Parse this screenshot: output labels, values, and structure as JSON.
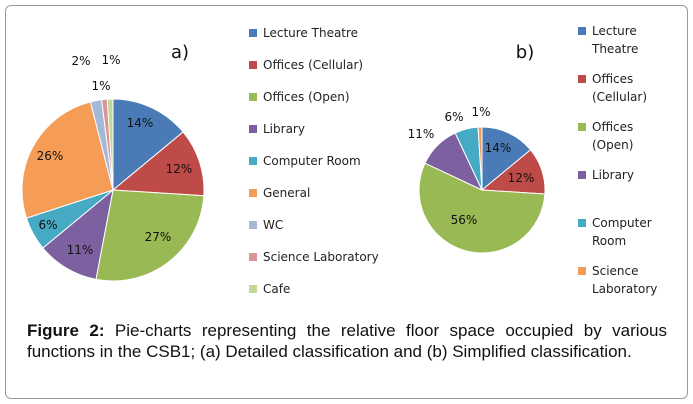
{
  "chart_data": [
    {
      "type": "pie",
      "panel_label": "a)",
      "slices": [
        {
          "label": "Lecture Theatre",
          "value": 14,
          "label_text": "14%",
          "color": "#4a7bb7"
        },
        {
          "label": "Offices (Cellular)",
          "value": 12,
          "label_text": "12%",
          "color": "#be4b48"
        },
        {
          "label": "Offices (Open)",
          "value": 27,
          "label_text": "27%",
          "color": "#98b954"
        },
        {
          "label": "Library",
          "value": 11,
          "label_text": "11%",
          "color": "#7d60a0"
        },
        {
          "label": "Computer Room",
          "value": 6,
          "label_text": "6%",
          "color": "#46aac5"
        },
        {
          "label": "General",
          "value": 26,
          "label_text": "26%",
          "color": "#f59d56"
        },
        {
          "label": "WC",
          "value": 2,
          "label_text": "2%",
          "color": "#a5b8d8"
        },
        {
          "label": "Science Laboratory",
          "value": 1,
          "label_text": "1%",
          "color": "#d99694"
        },
        {
          "label": "Cafe",
          "value": 1,
          "label_text": "1%",
          "color": "#c3d69b"
        }
      ],
      "legend": [
        {
          "lines": [
            "Lecture Theatre"
          ],
          "color": "#4a7bb7"
        },
        {
          "lines": [
            "Offices (Cellular)"
          ],
          "color": "#be4b48"
        },
        {
          "lines": [
            "Offices (Open)"
          ],
          "color": "#98b954"
        },
        {
          "lines": [
            "Library"
          ],
          "color": "#7d60a0"
        },
        {
          "lines": [
            "Computer Room"
          ],
          "color": "#46aac5"
        },
        {
          "lines": [
            "General"
          ],
          "color": "#f59d56"
        },
        {
          "lines": [
            "WC"
          ],
          "color": "#a5b8d8"
        },
        {
          "lines": [
            "Science Laboratory"
          ],
          "color": "#d99694"
        },
        {
          "lines": [
            "Cafe"
          ],
          "color": "#c3d69b"
        }
      ]
    },
    {
      "type": "pie",
      "panel_label": "b)",
      "slices": [
        {
          "label": "Lecture Theatre",
          "value": 14,
          "label_text": "14%",
          "color": "#4a7bb7"
        },
        {
          "label": "Offices (Cellular)",
          "value": 12,
          "label_text": "12%",
          "color": "#be4b48"
        },
        {
          "label": "Offices (Open)",
          "value": 56,
          "label_text": "56%",
          "color": "#98b954"
        },
        {
          "label": "Library",
          "value": 11,
          "label_text": "11%",
          "color": "#7d60a0"
        },
        {
          "label": "Computer Room",
          "value": 6,
          "label_text": "6%",
          "color": "#46aac5"
        },
        {
          "label": "Science Laboratory",
          "value": 1,
          "label_text": "1%",
          "color": "#f59d56"
        }
      ],
      "legend": [
        {
          "lines": [
            "Lecture",
            "Theatre"
          ],
          "color": "#4a7bb7"
        },
        {
          "lines": [
            "Offices",
            "(Cellular)"
          ],
          "color": "#be4b48"
        },
        {
          "lines": [
            "Offices",
            "(Open)"
          ],
          "color": "#98b954"
        },
        {
          "lines": [
            "Library"
          ],
          "color": "#7d60a0"
        },
        {
          "lines": [
            "Computer",
            "Room"
          ],
          "color": "#46aac5"
        },
        {
          "lines": [
            "Science",
            "Laboratory"
          ],
          "color": "#f59d56"
        }
      ]
    }
  ],
  "caption": {
    "label": "Figure 2:",
    "text": " Pie-charts representing the relative floor space occupied by various functions in the CSB1; (a) Detailed classification and (b) Simplified classification."
  }
}
